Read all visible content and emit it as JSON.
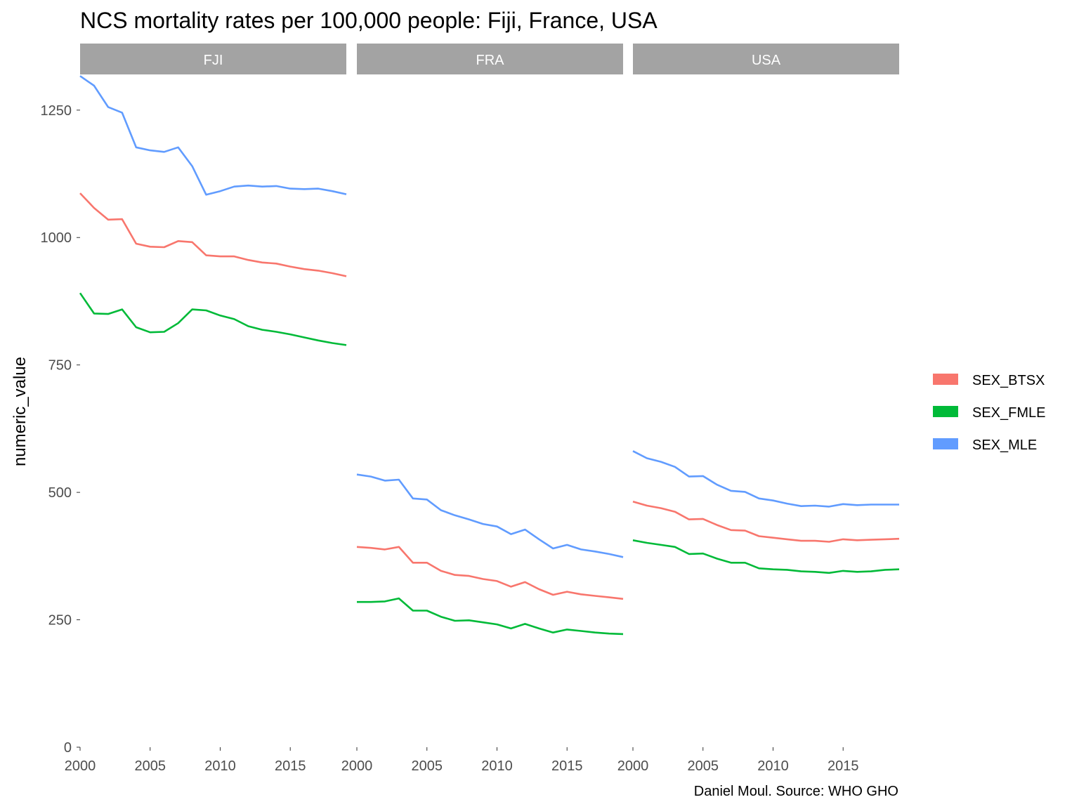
{
  "chart_data": {
    "type": "line",
    "title": "NCS mortality rates per 100,000 people: Fiji, France, USA",
    "ylabel": "numeric_value",
    "xlabel": "",
    "caption": "Daniel Moul. Source: WHO GHO",
    "ylim": [
      0,
      1320
    ],
    "xlim": [
      2000,
      2019
    ],
    "y_ticks": [
      0,
      250,
      500,
      750,
      1000,
      1250
    ],
    "x_ticks": [
      2000,
      2005,
      2010,
      2015
    ],
    "grid": false,
    "legend_position": "right",
    "x": [
      2000,
      2001,
      2002,
      2003,
      2004,
      2005,
      2006,
      2007,
      2008,
      2009,
      2010,
      2011,
      2012,
      2013,
      2014,
      2015,
      2016,
      2017,
      2018,
      2019
    ],
    "legend": [
      {
        "key": "SEX_BTSX",
        "label": "SEX_BTSX",
        "color": "#F8766D"
      },
      {
        "key": "SEX_FMLE",
        "label": "SEX_FMLE",
        "color": "#00BA38"
      },
      {
        "key": "SEX_MLE",
        "label": "SEX_MLE",
        "color": "#619CFF"
      }
    ],
    "facets": [
      {
        "label": "FJI",
        "series": [
          {
            "name": "SEX_MLE",
            "values": [
              1317,
              1298,
              1256,
              1245,
              1177,
              1171,
              1168,
              1177,
              1140,
              1084,
              1091,
              1100,
              1102,
              1100,
              1101,
              1096,
              1095,
              1096,
              1091,
              1085
            ]
          },
          {
            "name": "SEX_BTSX",
            "values": [
              1087,
              1058,
              1035,
              1036,
              988,
              982,
              981,
              993,
              991,
              965,
              963,
              963,
              956,
              951,
              949,
              943,
              938,
              935,
              930,
              924
            ]
          },
          {
            "name": "SEX_FMLE",
            "values": [
              891,
              851,
              850,
              859,
              824,
              814,
              815,
              832,
              859,
              857,
              847,
              840,
              826,
              819,
              815,
              810,
              804,
              798,
              793,
              789
            ]
          }
        ]
      },
      {
        "label": "FRA",
        "series": [
          {
            "name": "SEX_MLE",
            "values": [
              535,
              531,
              523,
              525,
              488,
              486,
              465,
              455,
              447,
              438,
              433,
              418,
              427,
              408,
              390,
              397,
              388,
              384,
              379,
              373
            ]
          },
          {
            "name": "SEX_BTSX",
            "values": [
              393,
              391,
              388,
              393,
              362,
              362,
              346,
              338,
              336,
              330,
              326,
              315,
              324,
              310,
              299,
              305,
              300,
              297,
              294,
              291
            ]
          },
          {
            "name": "SEX_FMLE",
            "values": [
              285,
              285,
              286,
              292,
              268,
              268,
              256,
              248,
              249,
              245,
              241,
              233,
              242,
              233,
              225,
              231,
              228,
              225,
              223,
              222
            ]
          }
        ]
      },
      {
        "label": "USA",
        "series": [
          {
            "name": "SEX_MLE",
            "values": [
              581,
              567,
              560,
              550,
              531,
              532,
              515,
              503,
              501,
              488,
              484,
              478,
              473,
              474,
              472,
              477,
              475,
              476,
              476,
              476
            ]
          },
          {
            "name": "SEX_BTSX",
            "values": [
              482,
              474,
              469,
              462,
              447,
              448,
              436,
              426,
              425,
              414,
              411,
              408,
              405,
              405,
              403,
              408,
              406,
              407,
              408,
              409
            ]
          },
          {
            "name": "SEX_FMLE",
            "values": [
              406,
              401,
              397,
              393,
              379,
              380,
              370,
              362,
              362,
              351,
              349,
              348,
              345,
              344,
              342,
              346,
              344,
              345,
              348,
              349
            ]
          }
        ]
      }
    ]
  }
}
